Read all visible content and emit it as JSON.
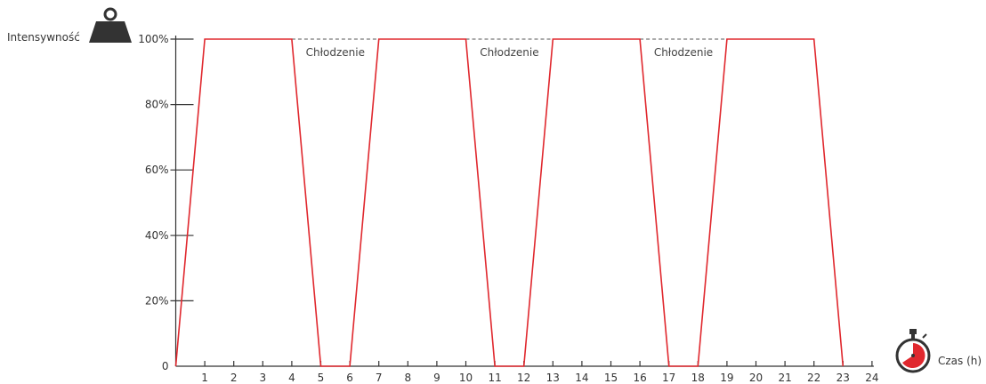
{
  "chart_data": {
    "type": "line",
    "ylabel": "Intensywność",
    "xlabel": "Czas (h)",
    "xlim": [
      0,
      24
    ],
    "ylim": [
      0,
      100
    ],
    "x_ticks": [
      1,
      2,
      3,
      4,
      5,
      6,
      7,
      8,
      9,
      10,
      11,
      12,
      13,
      14,
      15,
      16,
      17,
      18,
      19,
      20,
      21,
      22,
      23,
      24
    ],
    "y_ticks": [
      "0",
      "20%",
      "40%",
      "60%",
      "80%",
      "100%"
    ],
    "y_tick_values": [
      0,
      20,
      40,
      60,
      80,
      100
    ],
    "series": [
      {
        "color": "#e0282e",
        "x": [
          0,
          1,
          4,
          5,
          6,
          7,
          10,
          11,
          12,
          13,
          16,
          17,
          18,
          19,
          22,
          23
        ],
        "y": [
          0,
          100,
          100,
          0,
          0,
          100,
          100,
          0,
          0,
          100,
          100,
          0,
          0,
          100,
          100,
          0
        ]
      }
    ],
    "annotations": [
      {
        "text": "Chłodzenie",
        "x_start": 4,
        "x_end": 7,
        "y": 100
      },
      {
        "text": "Chłodzenie",
        "x_start": 10,
        "x_end": 13,
        "y": 100
      },
      {
        "text": "Chłodzenie",
        "x_start": 16,
        "x_end": 19,
        "y": 100
      }
    ],
    "grid": false,
    "icons": {
      "y_axis": "weight-icon",
      "x_axis": "stopwatch-icon",
      "stopwatch_accent": "#e0282e"
    }
  }
}
